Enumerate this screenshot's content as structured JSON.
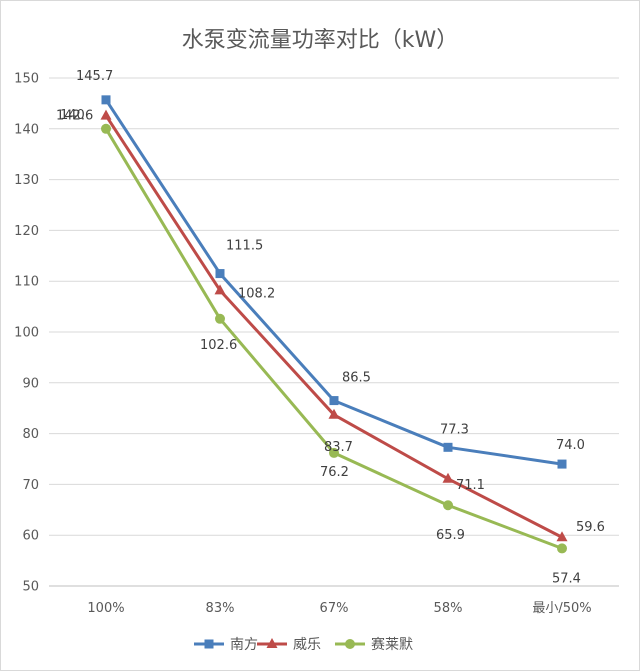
{
  "chart_data": {
    "type": "line",
    "title": "水泵变流量功率对比（kW）",
    "categories": [
      "100%",
      "83%",
      "67%",
      "58%",
      "最小/50%"
    ],
    "ylim": [
      50,
      150
    ],
    "yticks": [
      50,
      60,
      70,
      80,
      90,
      100,
      110,
      120,
      130,
      140,
      150
    ],
    "grid": true,
    "legend_position": "bottom",
    "series": [
      {
        "name": "南方",
        "values": [
          145.7,
          111.5,
          86.5,
          77.3,
          74.0
        ],
        "labels": [
          "145.7",
          "111.5",
          "86.5",
          "77.3",
          "74.0"
        ],
        "color": "#4a7ebb",
        "marker": "square"
      },
      {
        "name": "威乐",
        "values": [
          142.6,
          108.2,
          83.7,
          71.1,
          59.6
        ],
        "labels": [
          "142.6",
          "108.2",
          "83.7",
          "71.1",
          "59.6"
        ],
        "color": "#be4b48",
        "marker": "triangle"
      },
      {
        "name": "赛莱默",
        "values": [
          140,
          102.6,
          76.2,
          65.9,
          57.4
        ],
        "labels": [
          "140",
          "102.6",
          "76.2",
          "65.9",
          "57.4"
        ],
        "color": "#98b954",
        "marker": "circle"
      }
    ]
  }
}
